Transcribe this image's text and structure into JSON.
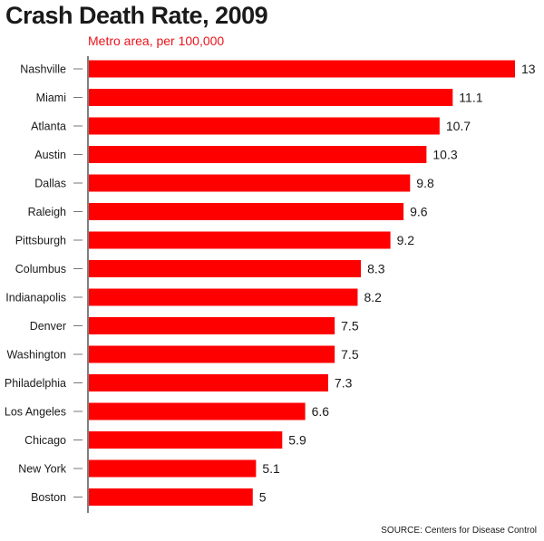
{
  "chart_data": {
    "type": "bar",
    "orientation": "horizontal",
    "title": "Crash Death Rate, 2009",
    "subtitle": "Metro area, per 100,000",
    "source": "SOURCE: Centers for Disease Control",
    "categories": [
      "Nashville",
      "Miami",
      "Atlanta",
      "Austin",
      "Dallas",
      "Raleigh",
      "Pittsburgh",
      "Columbus",
      "Indianapolis",
      "Denver",
      "Washington",
      "Philadelphia",
      "Los Angeles",
      "Chicago",
      "New York",
      "Boston"
    ],
    "values": [
      13,
      11.1,
      10.7,
      10.3,
      9.8,
      9.6,
      9.2,
      8.3,
      8.2,
      7.5,
      7.5,
      7.3,
      6.6,
      5.9,
      5.1,
      5
    ],
    "value_labels": [
      "13",
      "11.1",
      "10.7",
      "10.3",
      "9.8",
      "9.6",
      "9.2",
      "8.3",
      "8.2",
      "7.5",
      "7.5",
      "7.3",
      "6.6",
      "5.9",
      "5.1",
      "5"
    ],
    "xlim": [
      0,
      13
    ],
    "grid": false,
    "legend": "none",
    "colors": {
      "bar": "#ff0000",
      "title": "#1a1a1a",
      "subtitle": "#e8141b",
      "axis": "#555555"
    }
  }
}
